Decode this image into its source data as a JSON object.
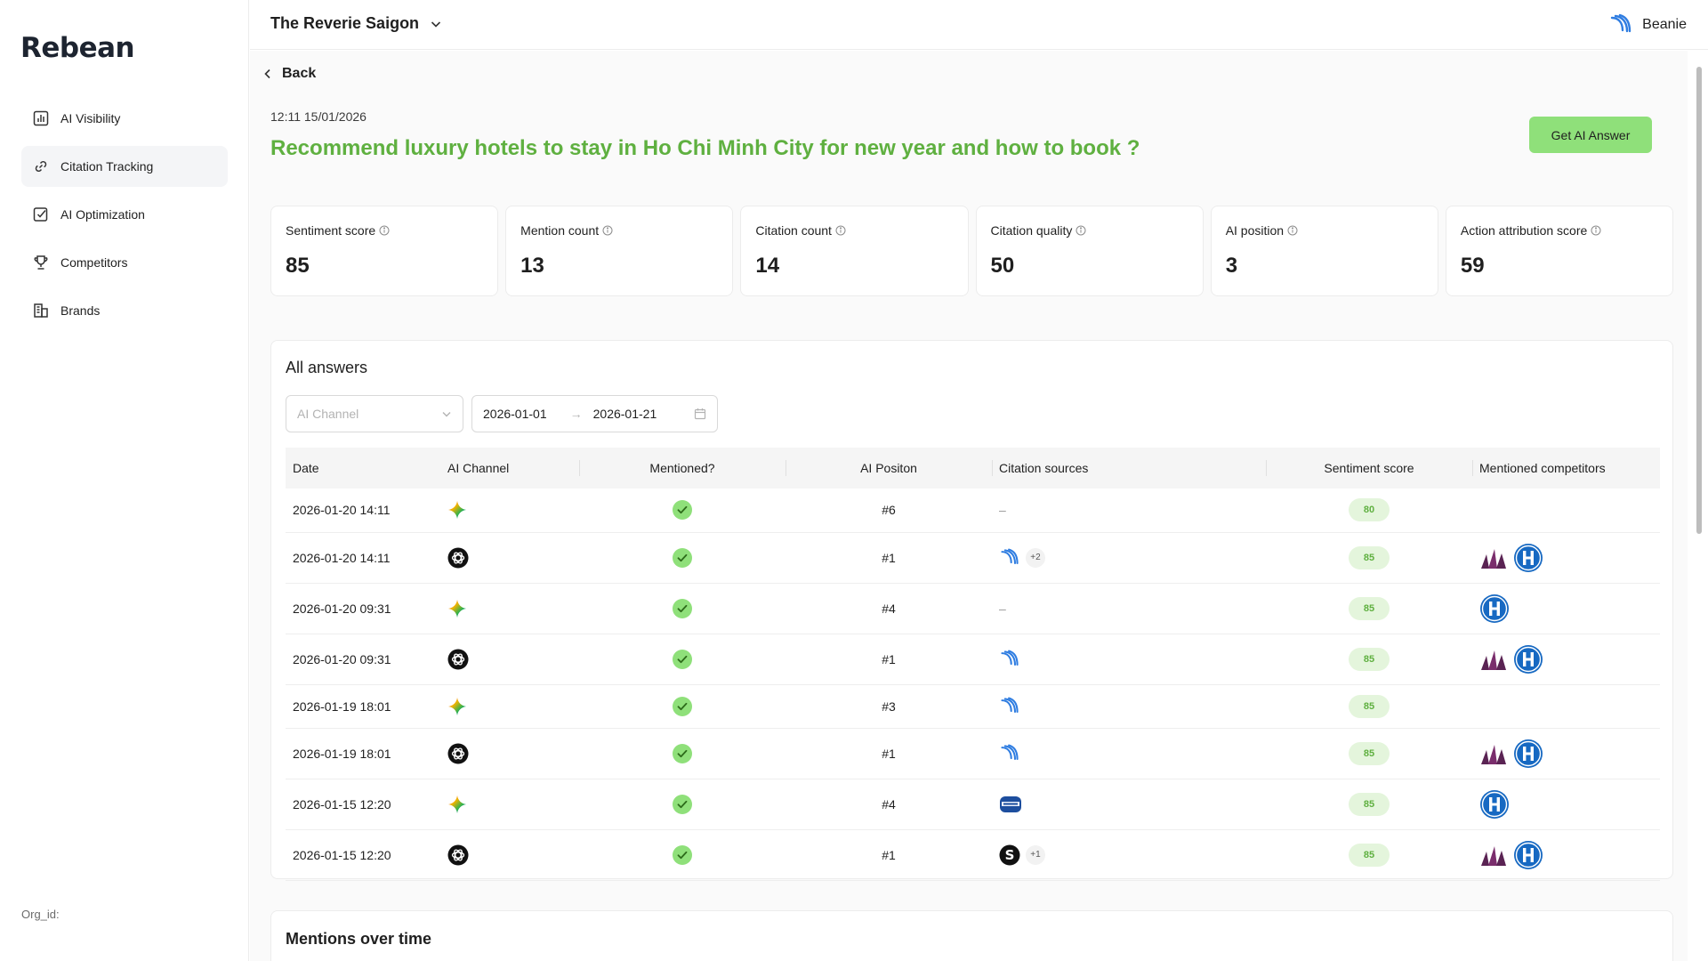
{
  "sidebar": {
    "logo": "Rebean",
    "items": [
      {
        "label": "AI Visibility",
        "icon": "bar-chart-icon",
        "active": false
      },
      {
        "label": "Citation Tracking",
        "icon": "link-icon",
        "active": true
      },
      {
        "label": "AI Optimization",
        "icon": "checkbox-icon",
        "active": false
      },
      {
        "label": "Competitors",
        "icon": "trophy-icon",
        "active": false
      },
      {
        "label": "Brands",
        "icon": "building-icon",
        "active": false
      }
    ],
    "org_label": "Org_id:"
  },
  "header": {
    "hotel": "The Reverie Saigon",
    "user": "Beanie"
  },
  "page": {
    "back": "Back",
    "timestamp": "12:11 15/01/2026",
    "question": "Recommend luxury hotels to stay in Ho Chi Minh City for new year and how to book ?",
    "get_answer": "Get AI Answer"
  },
  "metrics": [
    {
      "label": "Sentiment score",
      "value": "85"
    },
    {
      "label": "Mention count",
      "value": "13"
    },
    {
      "label": "Citation count",
      "value": "14"
    },
    {
      "label": "Citation quality",
      "value": "50"
    },
    {
      "label": "AI position",
      "value": "3"
    },
    {
      "label": "Action attribution score",
      "value": "59"
    }
  ],
  "answers": {
    "title": "All answers",
    "channel_placeholder": "AI Channel",
    "date_from": "2026-01-01",
    "date_to": "2026-01-21",
    "columns": [
      "Date",
      "AI Channel",
      "Mentioned?",
      "AI Positon",
      "Citation sources",
      "Sentiment score",
      "Mentioned competitors"
    ],
    "rows": [
      {
        "date": "2026-01-20 14:11",
        "channel": "gemini",
        "position": "#6",
        "sources": [],
        "extra": "",
        "score": "80",
        "competitors": []
      },
      {
        "date": "2026-01-20 14:11",
        "channel": "chatgpt",
        "position": "#1",
        "sources": [
          "reverie"
        ],
        "extra": "+2",
        "score": "85",
        "competitors": [
          "sails",
          "hilton"
        ]
      },
      {
        "date": "2026-01-20 09:31",
        "channel": "gemini",
        "position": "#4",
        "sources": [],
        "extra": "",
        "score": "85",
        "competitors": [
          "hilton"
        ]
      },
      {
        "date": "2026-01-20 09:31",
        "channel": "chatgpt",
        "position": "#1",
        "sources": [
          "reverie"
        ],
        "extra": "",
        "score": "85",
        "competitors": [
          "sails",
          "hilton"
        ]
      },
      {
        "date": "2026-01-19 18:01",
        "channel": "gemini",
        "position": "#3",
        "sources": [
          "reverie"
        ],
        "extra": "",
        "score": "85",
        "competitors": []
      },
      {
        "date": "2026-01-19 18:01",
        "channel": "chatgpt",
        "position": "#1",
        "sources": [
          "reverie"
        ],
        "extra": "",
        "score": "85",
        "competitors": [
          "sails",
          "hilton"
        ]
      },
      {
        "date": "2026-01-15 12:20",
        "channel": "gemini",
        "position": "#4",
        "sources": [
          "card"
        ],
        "extra": "",
        "score": "85",
        "competitors": [
          "hilton"
        ]
      },
      {
        "date": "2026-01-15 12:20",
        "channel": "chatgpt",
        "position": "#1",
        "sources": [
          "s-logo"
        ],
        "extra": "+1",
        "score": "85",
        "competitors": [
          "sails",
          "hilton"
        ]
      }
    ],
    "empty_source": "–"
  },
  "mentions": {
    "title": "Mentions over time"
  },
  "colors": {
    "accent": "#5fb040",
    "button": "#8fe07a",
    "score_bg": "#e4f5dc",
    "hilton": "#1769c2",
    "sails": "#6a2a5e"
  }
}
